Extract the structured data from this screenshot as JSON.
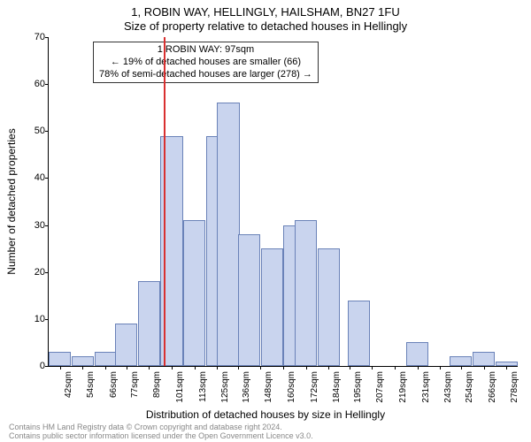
{
  "title_line1": "1, ROBIN WAY, HELLINGLY, HAILSHAM, BN27 1FU",
  "title_line2": "Size of property relative to detached houses in Hellingly",
  "ylabel": "Number of detached properties",
  "xlabel": "Distribution of detached houses by size in Hellingly",
  "footer_line1": "Contains HM Land Registry data © Crown copyright and database right 2024.",
  "footer_line2": "Contains public sector information licensed under the Open Government Licence v3.0.",
  "annotation": {
    "line1": "1 ROBIN WAY: 97sqm",
    "line2": "← 19% of detached houses are smaller (66)",
    "line3": "78% of semi-detached houses are larger (278) →",
    "fontsize": 11
  },
  "chart": {
    "type": "histogram",
    "ylim": [
      0,
      70
    ],
    "ytick_step": 10,
    "xlim": [
      36,
      284
    ],
    "bar_fill": "#c9d4ee",
    "bar_border": "#6a82b8",
    "marker_color": "#d93030",
    "marker_x": 97,
    "background_color": "#ffffff",
    "xtick_labels": [
      "42sqm",
      "54sqm",
      "66sqm",
      "77sqm",
      "89sqm",
      "101sqm",
      "113sqm",
      "125sqm",
      "136sqm",
      "148sqm",
      "160sqm",
      "172sqm",
      "184sqm",
      "195sqm",
      "207sqm",
      "219sqm",
      "231sqm",
      "243sqm",
      "254sqm",
      "266sqm",
      "278sqm"
    ],
    "xtick_positions": [
      42,
      54,
      66,
      77,
      89,
      101,
      113,
      125,
      136,
      148,
      160,
      172,
      184,
      195,
      207,
      219,
      231,
      243,
      254,
      266,
      278
    ],
    "bin_width": 11.8,
    "bars": [
      {
        "x": 42,
        "y": 3
      },
      {
        "x": 54,
        "y": 2
      },
      {
        "x": 66,
        "y": 3
      },
      {
        "x": 77,
        "y": 9
      },
      {
        "x": 89,
        "y": 18
      },
      {
        "x": 101,
        "y": 49
      },
      {
        "x": 113,
        "y": 31
      },
      {
        "x": 125,
        "y": 49
      },
      {
        "x": 131,
        "y": 56
      },
      {
        "x": 142,
        "y": 28
      },
      {
        "x": 154,
        "y": 25
      },
      {
        "x": 166,
        "y": 30
      },
      {
        "x": 172,
        "y": 31
      },
      {
        "x": 184,
        "y": 25
      },
      {
        "x": 200,
        "y": 14
      },
      {
        "x": 231,
        "y": 5
      },
      {
        "x": 254,
        "y": 2
      },
      {
        "x": 266,
        "y": 3
      },
      {
        "x": 278,
        "y": 1
      }
    ]
  }
}
